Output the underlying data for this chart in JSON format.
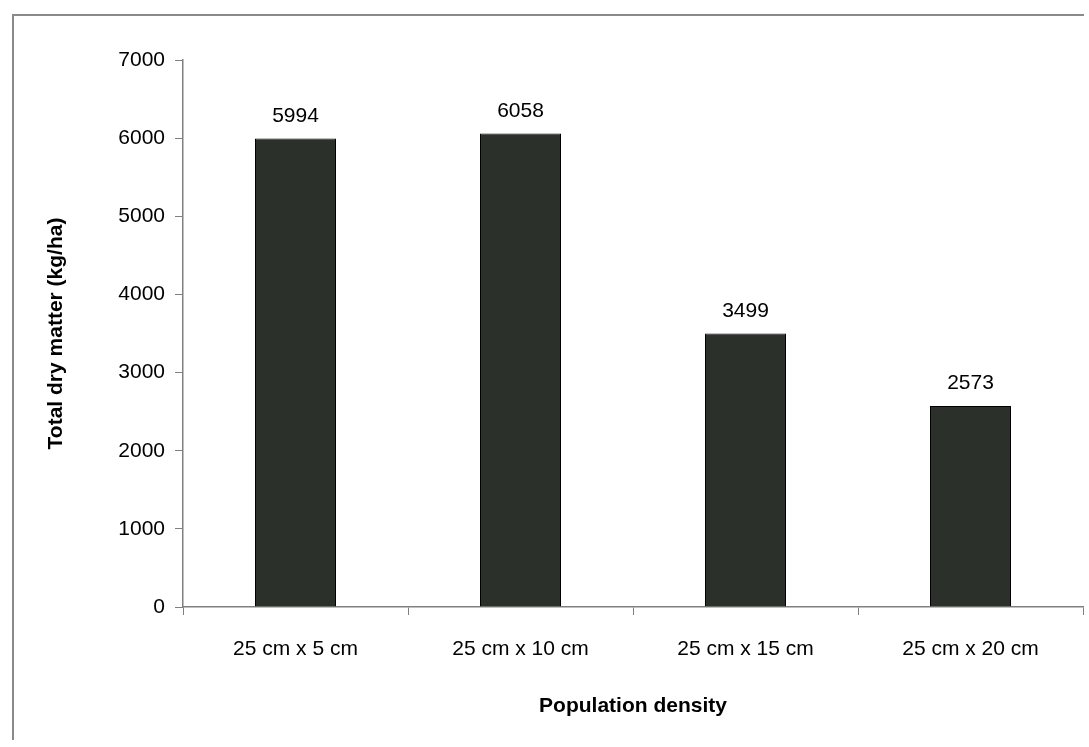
{
  "chart_data": {
    "type": "bar",
    "xlabel": "Population density",
    "ylabel": "Total dry matter (kg/ha)",
    "categories": [
      "25 cm x 5 cm",
      "25 cm x 10 cm",
      "25 cm x 15 cm",
      "25 cm x 20 cm"
    ],
    "values": [
      5994,
      6058,
      3499,
      2573
    ],
    "color": "#2b302b",
    "ylim": [
      0,
      7000
    ],
    "yticks": [
      0,
      1000,
      2000,
      3000,
      4000,
      5000,
      6000,
      7000
    ],
    "data_labels": true
  }
}
